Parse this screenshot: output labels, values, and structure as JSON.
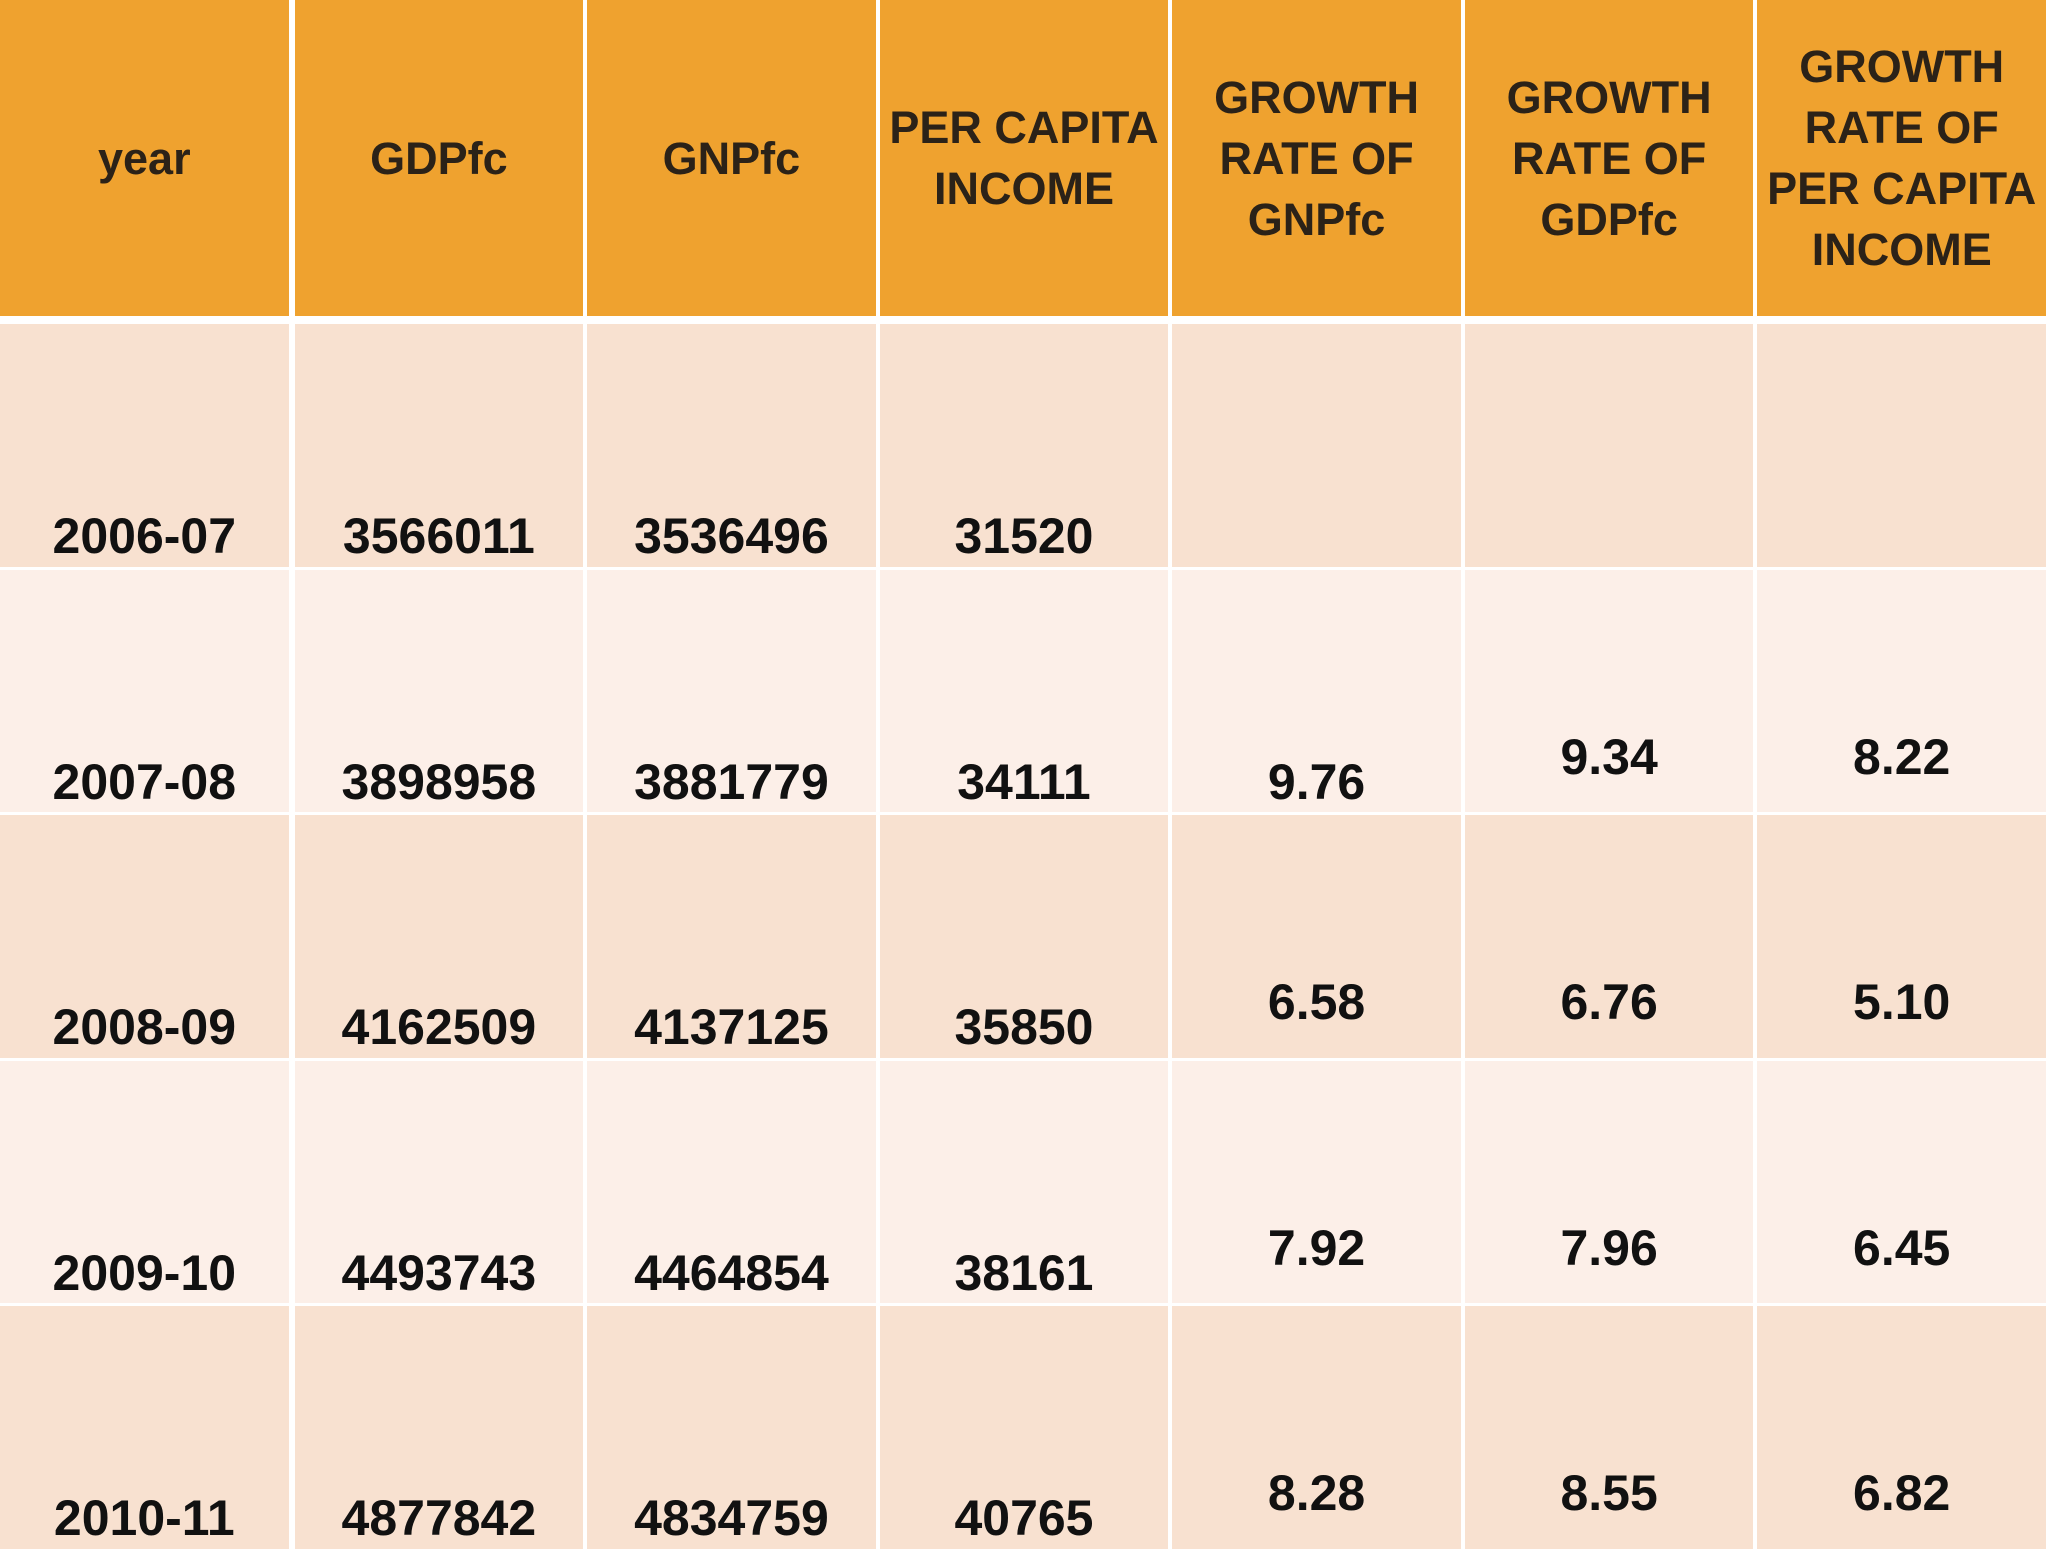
{
  "table": {
    "header": [
      "year",
      "GDPfc",
      "GNPfc",
      "PER CAPITA INCOME",
      "GROWTH RATE OF GNPfc",
      "GROWTH RATE OF GDPfc",
      "GROWTH RATE OF PER CAPITA INCOME"
    ],
    "rows": [
      [
        "2006-07",
        "3566011",
        "3536496",
        "31520",
        null,
        null,
        null
      ],
      [
        "2007-08",
        "3898958",
        "3881779",
        "34111",
        "9.76",
        "9.34",
        "8.22"
      ],
      [
        "2008-09",
        "4162509",
        "4137125",
        "35850",
        "6.58",
        "6.76",
        "5.10"
      ],
      [
        "2009-10",
        "4493743",
        "4464854",
        "38161",
        "7.92",
        "7.96",
        "6.45"
      ],
      [
        "2010-11",
        "4877842",
        "4834759",
        "40765",
        "8.28",
        "8.55",
        "6.82"
      ]
    ]
  }
}
